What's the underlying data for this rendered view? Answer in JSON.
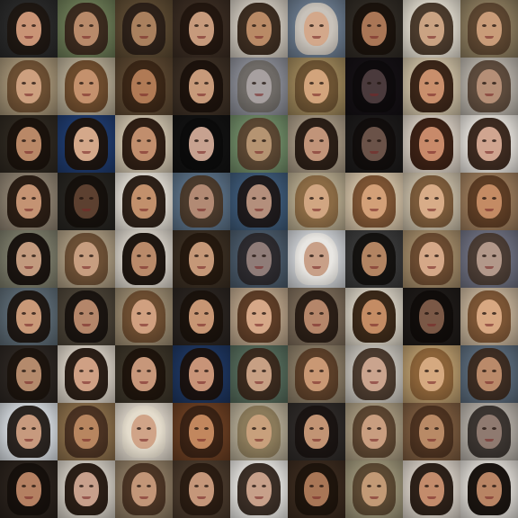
{
  "grid": {
    "rows": 9,
    "columns": 9,
    "tiles": [
      {
        "bg": "#2a2a2a",
        "hair": "#1e1712",
        "skin": "#c99476"
      },
      {
        "bg": "#6b7a55",
        "hair": "#3a2a1e",
        "skin": "#b88a6a"
      },
      {
        "bg": "#5c4a32",
        "hair": "#2c2018",
        "skin": "#a9805e"
      },
      {
        "bg": "#3a2c22",
        "hair": "#22160f",
        "skin": "#c69a7c"
      },
      {
        "bg": "#cfc8bd",
        "hair": "#3b2c20",
        "skin": "#b98a66"
      },
      {
        "bg": "#6b7b8e",
        "hair": "#c8c2ba",
        "skin": "#d3a88b"
      },
      {
        "bg": "#2f2a24",
        "hair": "#1a120c",
        "skin": "#a97656"
      },
      {
        "bg": "#e2dccf",
        "hair": "#4a3a2c",
        "skin": "#caa383"
      },
      {
        "bg": "#8c7c5e",
        "hair": "#5b4530",
        "skin": "#c99c79"
      },
      {
        "bg": "#a39275",
        "hair": "#6b4e32",
        "skin": "#cda07f"
      },
      {
        "bg": "#b3a891",
        "hair": "#6b4a2c",
        "skin": "#c4916d"
      },
      {
        "bg": "#5a4630",
        "hair": "#3a2616",
        "skin": "#b07a55"
      },
      {
        "bg": "#3c2f24",
        "hair": "#1c120c",
        "skin": "#c79a7a"
      },
      {
        "bg": "#8a8c95",
        "hair": "#6e6a66",
        "skin": "#a7a0a0"
      },
      {
        "bg": "#9c8559",
        "hair": "#6b5232",
        "skin": "#d2a47c"
      },
      {
        "bg": "#141014",
        "hair": "#0d0a0c",
        "skin": "#4a3a3c"
      },
      {
        "bg": "#cdbfa4",
        "hair": "#3a2518",
        "skin": "#c98f6c"
      },
      {
        "bg": "#b7b1a8",
        "hair": "#5c4a3c",
        "skin": "#b58f77"
      },
      {
        "bg": "#2e2820",
        "hair": "#1a120c",
        "skin": "#b98867"
      },
      {
        "bg": "#1f3b6e",
        "hair": "#1c1410",
        "skin": "#d4a88a"
      },
      {
        "bg": "#cfc3ad",
        "hair": "#2e1e14",
        "skin": "#c18e6d"
      },
      {
        "bg": "#121212",
        "hair": "#0b0b0b",
        "skin": "#c7a290"
      },
      {
        "bg": "#6f8a66",
        "hair": "#5a4632",
        "skin": "#b59472"
      },
      {
        "bg": "#a49682",
        "hair": "#2a1e16",
        "skin": "#c19479"
      },
      {
        "bg": "#1c1a1a",
        "hair": "#110d0c",
        "skin": "#6a5248"
      },
      {
        "bg": "#d8cec2",
        "hair": "#3a2014",
        "skin": "#c88a6a"
      },
      {
        "bg": "#e8e4de",
        "hair": "#3c2a20",
        "skin": "#d0a590"
      },
      {
        "bg": "#8d8170",
        "hair": "#2a1d14",
        "skin": "#c49373"
      },
      {
        "bg": "#262420",
        "hair": "#15100c",
        "skin": "#5c4030"
      },
      {
        "bg": "#e6e1d8",
        "hair": "#2c2018",
        "skin": "#c2906c"
      },
      {
        "bg": "#5a7086",
        "hair": "#4a3a2c",
        "skin": "#b28a74"
      },
      {
        "bg": "#3e5a78",
        "hair": "#1e1a1c",
        "skin": "#b48f7c"
      },
      {
        "bg": "#b7aa8e",
        "hair": "#8a6a44",
        "skin": "#d1a682"
      },
      {
        "bg": "#d6c4a8",
        "hair": "#7a5232",
        "skin": "#d3a078"
      },
      {
        "bg": "#c8bca6",
        "hair": "#7a5a3a",
        "skin": "#d8ac88"
      },
      {
        "bg": "#9a7a5a",
        "hair": "#5c3c24",
        "skin": "#c48b64"
      },
      {
        "bg": "#7c7c6a",
        "hair": "#1a1410",
        "skin": "#c29a7e"
      },
      {
        "bg": "#aa9a80",
        "hair": "#6a4e34",
        "skin": "#c79e80"
      },
      {
        "bg": "#d9d3c9",
        "hair": "#1e1610",
        "skin": "#b98a6a"
      },
      {
        "bg": "#3a2e22",
        "hair": "#24180e",
        "skin": "#c59878"
      },
      {
        "bg": "#4a5a6a",
        "hair": "#2c2a2e",
        "skin": "#8f7c78"
      },
      {
        "bg": "#cfd2d6",
        "hair": "#e8e6e2",
        "skin": "#c8a088"
      },
      {
        "bg": "#3a3a3a",
        "hair": "#141210",
        "skin": "#b28462"
      },
      {
        "bg": "#a28a68",
        "hair": "#6a4a30",
        "skin": "#d5a888"
      },
      {
        "bg": "#6e7080",
        "hair": "#4a3c34",
        "skin": "#b2988a"
      },
      {
        "bg": "#5c6a74",
        "hair": "#1e1814",
        "skin": "#c99978"
      },
      {
        "bg": "#4a4236",
        "hair": "#1a1410",
        "skin": "#b4866a"
      },
      {
        "bg": "#9a8a70",
        "hair": "#6b4c30",
        "skin": "#d0a080"
      },
      {
        "bg": "#2a2420",
        "hair": "#1a120c",
        "skin": "#c79674"
      },
      {
        "bg": "#b8a288",
        "hair": "#5c3c26",
        "skin": "#d6a888"
      },
      {
        "bg": "#7a6a58",
        "hair": "#2a1e16",
        "skin": "#b5866a"
      },
      {
        "bg": "#d9d2c4",
        "hair": "#3a2818",
        "skin": "#c48c64"
      },
      {
        "bg": "#1e1a18",
        "hair": "#100c0a",
        "skin": "#7a5846"
      },
      {
        "bg": "#c4b198",
        "hair": "#7a5434",
        "skin": "#d8a882"
      },
      {
        "bg": "#2c2622",
        "hair": "#1c140e",
        "skin": "#b48a6c"
      },
      {
        "bg": "#d8d0c4",
        "hair": "#2a1e16",
        "skin": "#cfa084"
      },
      {
        "bg": "#3b3428",
        "hair": "#1e140c",
        "skin": "#c7977a"
      },
      {
        "bg": "#1e3660",
        "hair": "#1a1210",
        "skin": "#c89478"
      },
      {
        "bg": "#546a5a",
        "hair": "#3a2a1e",
        "skin": "#c7a084"
      },
      {
        "bg": "#8a7c66",
        "hair": "#5a3e28",
        "skin": "#c99874"
      },
      {
        "bg": "#c8c4bc",
        "hair": "#4a3a2e",
        "skin": "#caa48e"
      },
      {
        "bg": "#b89a6c",
        "hair": "#8a6238",
        "skin": "#d5a980"
      },
      {
        "bg": "#5a6a7a",
        "hair": "#3c2c22",
        "skin": "#ba8a6a"
      },
      {
        "bg": "#d8dde2",
        "hair": "#2a2420",
        "skin": "#c79a7e"
      },
      {
        "bg": "#8a6e4a",
        "hair": "#4a3222",
        "skin": "#b88660"
      },
      {
        "bg": "#dcd4c8",
        "hair": "#e4dccc",
        "skin": "#d0a488"
      },
      {
        "bg": "#6a3e22",
        "hair": "#3a2214",
        "skin": "#c2875e"
      },
      {
        "bg": "#b4aa94",
        "hair": "#8a7a5a",
        "skin": "#c8a07c"
      },
      {
        "bg": "#2e2a28",
        "hair": "#1a1412",
        "skin": "#c29474"
      },
      {
        "bg": "#a89a80",
        "hair": "#5a4430",
        "skin": "#c99e80"
      },
      {
        "bg": "#7a5a3e",
        "hair": "#4c3220",
        "skin": "#b98a66"
      },
      {
        "bg": "#b4aea6",
        "hair": "#3a3430",
        "skin": "#8f7a70"
      },
      {
        "bg": "#2a221c",
        "hair": "#16100c",
        "skin": "#b48062"
      },
      {
        "bg": "#d2ccc2",
        "hair": "#2a1e16",
        "skin": "#c7a08c"
      },
      {
        "bg": "#8c7a62",
        "hair": "#4a3424",
        "skin": "#c29678"
      },
      {
        "bg": "#4a3a2c",
        "hair": "#2a1c12",
        "skin": "#c5977a"
      },
      {
        "bg": "#e8e6e2",
        "hair": "#3a2e26",
        "skin": "#c7a08a"
      },
      {
        "bg": "#3a2a1e",
        "hair": "#1e140c",
        "skin": "#a87656"
      },
      {
        "bg": "#9c9478",
        "hair": "#5a4832",
        "skin": "#c29a76"
      },
      {
        "bg": "#d8d0c6",
        "hair": "#2c2018",
        "skin": "#c38c6c"
      },
      {
        "bg": "#e0dcd6",
        "hair": "#1a1410",
        "skin": "#b88464"
      }
    ]
  }
}
